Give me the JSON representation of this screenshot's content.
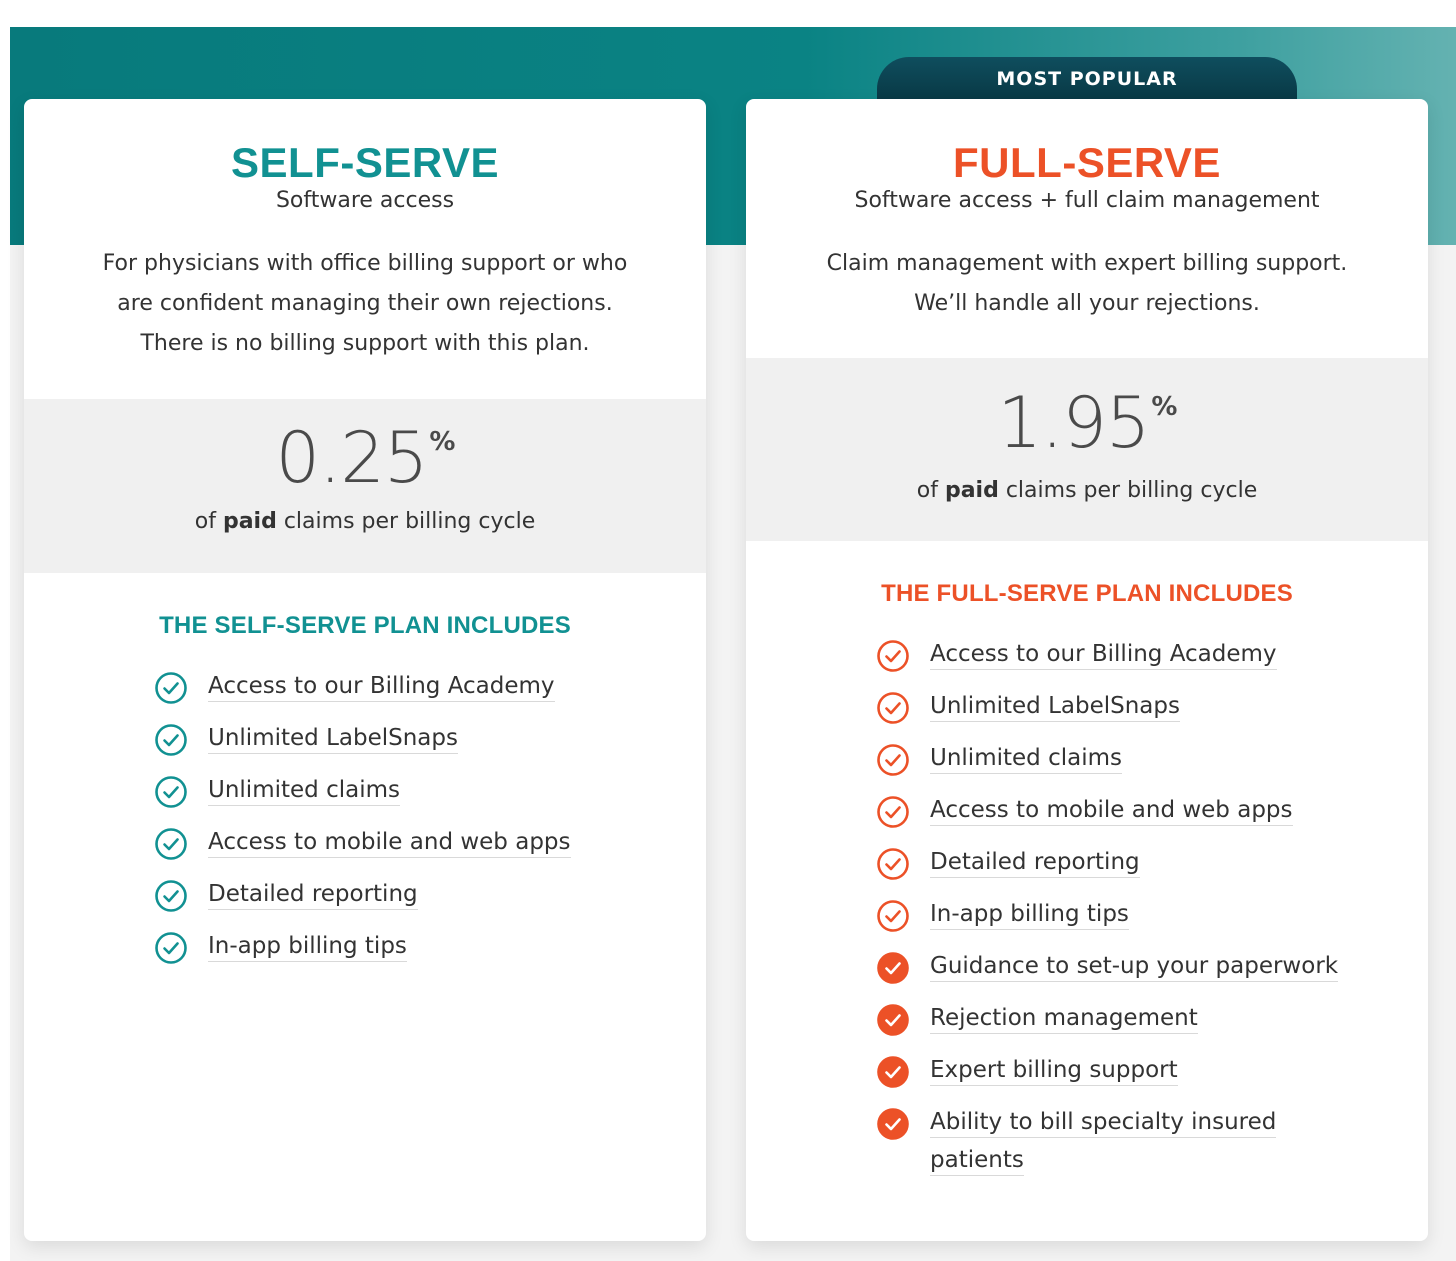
{
  "badge": "MOST POPULAR",
  "colors": {
    "teal": "#119192",
    "orange": "#ec5127",
    "band": "#087a7c",
    "badge_bg": "#0f4e5e"
  },
  "self_serve": {
    "name": "SELF-SERVE",
    "subtitle": "Software access",
    "description": "For physicians with office billing support or who are confident managing their own rejections. There is no billing support with this plan.",
    "price": "0.25",
    "percent": "%",
    "price_note_pre": "of ",
    "price_note_bold": "paid",
    "price_note_post": " claims per billing cycle",
    "includes_title": "THE SELF-SERVE PLAN INCLUDES",
    "features": [
      "Access to our Billing Academy",
      "Unlimited LabelSnaps",
      "Unlimited claims",
      "Access to mobile and web apps",
      "Detailed reporting",
      "In-app billing tips"
    ],
    "icon": "check-circle-outline-icon"
  },
  "full_serve": {
    "name": "FULL-SERVE",
    "subtitle": "Software access + full claim management",
    "description": "Claim management with expert billing support. We’ll handle all your rejections.",
    "price": "1.95",
    "percent": "%",
    "price_note_pre": "of ",
    "price_note_bold": "paid",
    "price_note_post": " claims per billing cycle",
    "includes_title": "THE FULL-SERVE PLAN INCLUDES",
    "features": [
      "Access to our Billing Academy",
      "Unlimited LabelSnaps",
      "Unlimited claims",
      "Access to mobile and web apps",
      "Detailed reporting",
      "In-app billing tips",
      "Guidance to set-up your paperwork",
      "Rejection management",
      "Expert billing support",
      "Ability to bill specialty insured patients"
    ],
    "features_filled_from_index": 6,
    "icon_outline": "check-circle-outline-icon",
    "icon_filled": "check-circle-filled-icon"
  }
}
